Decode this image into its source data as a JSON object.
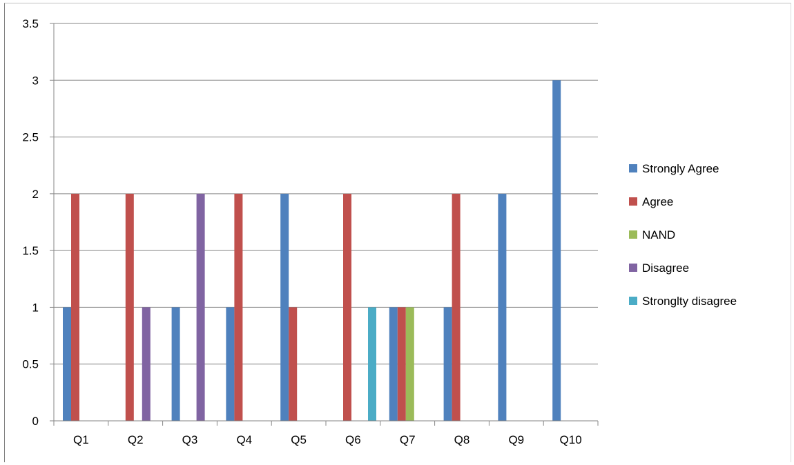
{
  "chart_data": {
    "type": "bar",
    "title": "",
    "xlabel": "",
    "ylabel": "",
    "ylim": [
      0,
      3.5
    ],
    "yticks": [
      "0",
      "0.5",
      "1",
      "1.5",
      "2",
      "2.5",
      "3",
      "3.5"
    ],
    "grid": true,
    "legend_position": "right",
    "categories": [
      "Q1",
      "Q2",
      "Q3",
      "Q4",
      "Q5",
      "Q6",
      "Q7",
      "Q8",
      "Q9",
      "Q10"
    ],
    "series": [
      {
        "name": "Strongly Agree",
        "color": "#4f81bd",
        "values": [
          1,
          0,
          1,
          1,
          2,
          0,
          1,
          1,
          2,
          3
        ]
      },
      {
        "name": "Agree",
        "color": "#c0504d",
        "values": [
          2,
          2,
          0,
          2,
          1,
          2,
          1,
          2,
          0,
          0
        ]
      },
      {
        "name": "NAND",
        "color": "#9bbb59",
        "values": [
          0,
          0,
          0,
          0,
          0,
          0,
          1,
          0,
          0,
          0
        ]
      },
      {
        "name": "Disagree",
        "color": "#8064a2",
        "values": [
          0,
          1,
          2,
          0,
          0,
          0,
          0,
          0,
          0,
          0
        ]
      },
      {
        "name": "Strongltу disagree",
        "color": "#4bacc6",
        "values": [
          0,
          0,
          0,
          0,
          0,
          1,
          0,
          0,
          0,
          0
        ]
      }
    ]
  }
}
